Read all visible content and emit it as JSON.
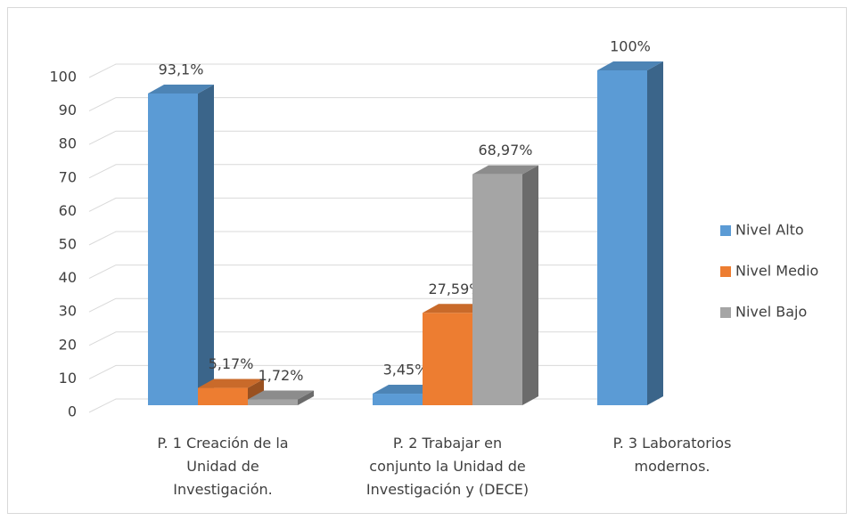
{
  "chart_data": {
    "type": "bar3d",
    "categories": [
      "P. 1 Creación de la Unidad de Investigación.",
      "P. 2 Trabajar en conjunto la Unidad de Investigación y (DECE)",
      "P. 3 Laboratorios modernos."
    ],
    "series": [
      {
        "name": "Nivel Alto",
        "color": "#5b9bd5",
        "values": [
          93.1,
          3.45,
          100
        ],
        "value_labels": [
          "93,1%",
          "3,45%",
          "100%"
        ]
      },
      {
        "name": "Nivel Medio",
        "color": "#ed7d31",
        "values": [
          5.17,
          27.59,
          null
        ],
        "value_labels": [
          "5,17%",
          "27,59%",
          null
        ]
      },
      {
        "name": "Nivel Bajo",
        "color": "#a5a5a5",
        "values": [
          1.72,
          68.97,
          null
        ],
        "value_labels": [
          "1,72%",
          "68,97%",
          null
        ]
      }
    ],
    "ylim": [
      0,
      100
    ],
    "yticks": [
      0,
      10,
      20,
      30,
      40,
      50,
      60,
      70,
      80,
      90,
      100
    ],
    "grid": true,
    "legend": "right"
  }
}
